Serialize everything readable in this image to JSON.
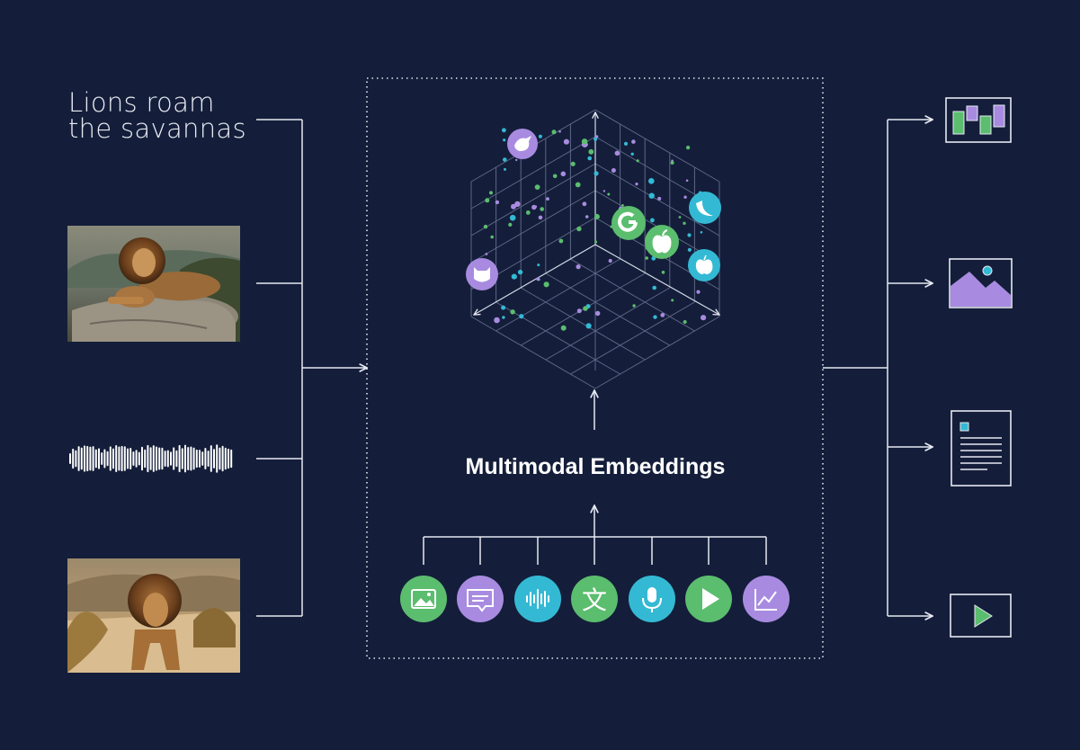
{
  "input_text": {
    "line1": "Lions roam",
    "line2": "the savannas"
  },
  "center": {
    "title": "Multimodal Embeddings"
  },
  "colors": {
    "background": "#141e3a",
    "line": "#e6e9f2",
    "green": "#5bbd6e",
    "purple": "#a88be0",
    "cyan": "#34b9d4"
  },
  "inputs": [
    "text",
    "photo-lion-resting",
    "audio-waveform",
    "photo-lion-walking"
  ],
  "embedding_cluster_icons": [
    {
      "name": "bird-icon",
      "color": "purple"
    },
    {
      "name": "google-icon",
      "color": "green"
    },
    {
      "name": "apple-logo-icon",
      "color": "green"
    },
    {
      "name": "banana-icon",
      "color": "cyan"
    },
    {
      "name": "apple-fruit-icon",
      "color": "cyan"
    },
    {
      "name": "cat-icon",
      "color": "purple"
    }
  ],
  "modality_icons": [
    {
      "name": "image-modality-icon",
      "color": "green"
    },
    {
      "name": "chat-modality-icon",
      "color": "purple"
    },
    {
      "name": "audio-modality-icon",
      "color": "cyan"
    },
    {
      "name": "translate-modality-icon",
      "color": "green"
    },
    {
      "name": "microphone-modality-icon",
      "color": "cyan"
    },
    {
      "name": "video-modality-icon",
      "color": "green"
    },
    {
      "name": "chart-modality-icon",
      "color": "purple"
    }
  ],
  "outputs": [
    "bar-chart-icon",
    "image-icon",
    "document-icon",
    "video-play-icon"
  ]
}
